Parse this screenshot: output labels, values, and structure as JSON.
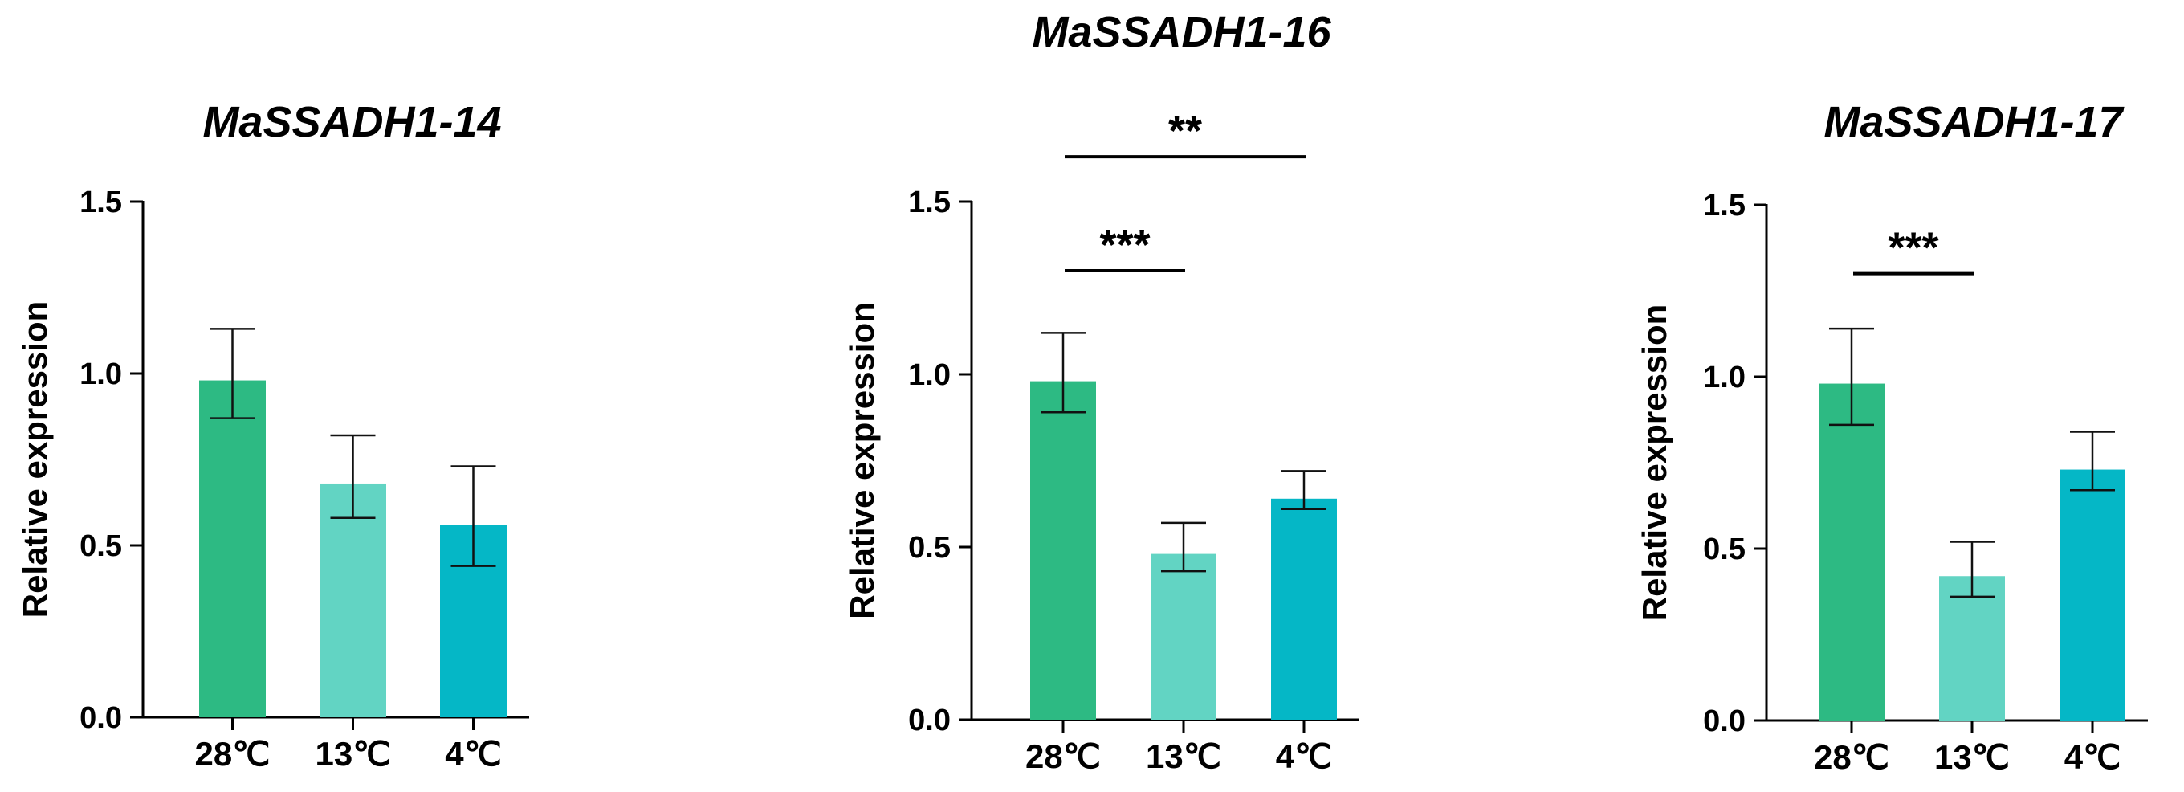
{
  "chart_data": [
    {
      "type": "bar",
      "title": "MaSSADH1-14",
      "ylabel": "Relative expression",
      "xlabel": "",
      "ylim": [
        0,
        1.5
      ],
      "yticks": [
        "0.0",
        "0.5",
        "1.0",
        "1.5"
      ],
      "categories": [
        "28℃",
        "13℃",
        "4℃"
      ],
      "values": [
        0.98,
        0.68,
        0.56
      ],
      "errors": [
        [
          0.87,
          1.13
        ],
        [
          0.58,
          0.82
        ],
        [
          0.44,
          0.73
        ]
      ],
      "colors": [
        "#2dba83",
        "#62d4c3",
        "#05b7c6"
      ],
      "significance": []
    },
    {
      "type": "bar",
      "title": "MaSSADH1-16",
      "ylabel": "Relative expression",
      "xlabel": "",
      "ylim": [
        0,
        1.5
      ],
      "yticks": [
        "0.0",
        "0.5",
        "1.0",
        "1.5"
      ],
      "categories": [
        "28℃",
        "13℃",
        "4℃"
      ],
      "values": [
        0.98,
        0.48,
        0.64
      ],
      "errors": [
        [
          0.89,
          1.12
        ],
        [
          0.43,
          0.57
        ],
        [
          0.61,
          0.72
        ]
      ],
      "colors": [
        "#2dba83",
        "#62d4c3",
        "#05b7c6"
      ],
      "significance": [
        {
          "from": 0,
          "to": 1,
          "label": "***",
          "level": 1.3
        },
        {
          "from": 0,
          "to": 2,
          "label": "**",
          "level": 1.63
        }
      ]
    },
    {
      "type": "bar",
      "title": "MaSSADH1-17",
      "ylabel": "Relative expression",
      "xlabel": "",
      "ylim": [
        0,
        1.5
      ],
      "yticks": [
        "0.0",
        "0.5",
        "1.0",
        "1.5"
      ],
      "categories": [
        "28℃",
        "13℃",
        "4℃"
      ],
      "values": [
        0.98,
        0.42,
        0.73
      ],
      "errors": [
        [
          0.86,
          1.14
        ],
        [
          0.36,
          0.52
        ],
        [
          0.67,
          0.84
        ]
      ],
      "colors": [
        "#2dba83",
        "#62d4c3",
        "#05b7c6"
      ],
      "significance": [
        {
          "from": 0,
          "to": 1,
          "label": "***",
          "level": 1.3
        }
      ]
    }
  ]
}
